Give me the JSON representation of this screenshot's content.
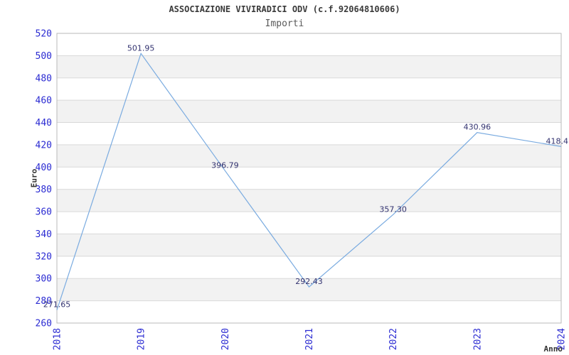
{
  "window": {
    "background": "#ffffff"
  },
  "chart_data": {
    "type": "line",
    "title": "ASSOCIAZIONE VIVIRADICI ODV (c.f.92064810606)",
    "subtitle": "Importi",
    "xlabel": "Anno",
    "ylabel": "Euro",
    "categories": [
      "2018",
      "2019",
      "2020",
      "2021",
      "2022",
      "2023",
      "2024"
    ],
    "values": [
      271.65,
      501.95,
      396.79,
      292.43,
      357.3,
      430.96,
      418.4
    ],
    "point_labels": [
      "271.65",
      "501.95",
      "396.79",
      "292.43",
      "357.30",
      "430.96",
      "418.4"
    ],
    "ylim": [
      260,
      520
    ],
    "ytick_step": 20,
    "yticks": [
      260,
      280,
      300,
      320,
      340,
      360,
      380,
      400,
      420,
      440,
      460,
      480,
      500,
      520
    ],
    "grid": true,
    "legend": false,
    "series_name": "Importi",
    "band_colors": [
      "#ffffff",
      "#f2f2f2"
    ],
    "colors": {
      "line": "#7aabe0",
      "tick_label": "#2b2bd2",
      "point_label": "#333370",
      "grid_line": "#d9d9d9",
      "plot_border": "#b9b9b9",
      "axis_title": "#333333",
      "title": "#3a3a3a",
      "subtitle": "#5a5a5a"
    }
  }
}
